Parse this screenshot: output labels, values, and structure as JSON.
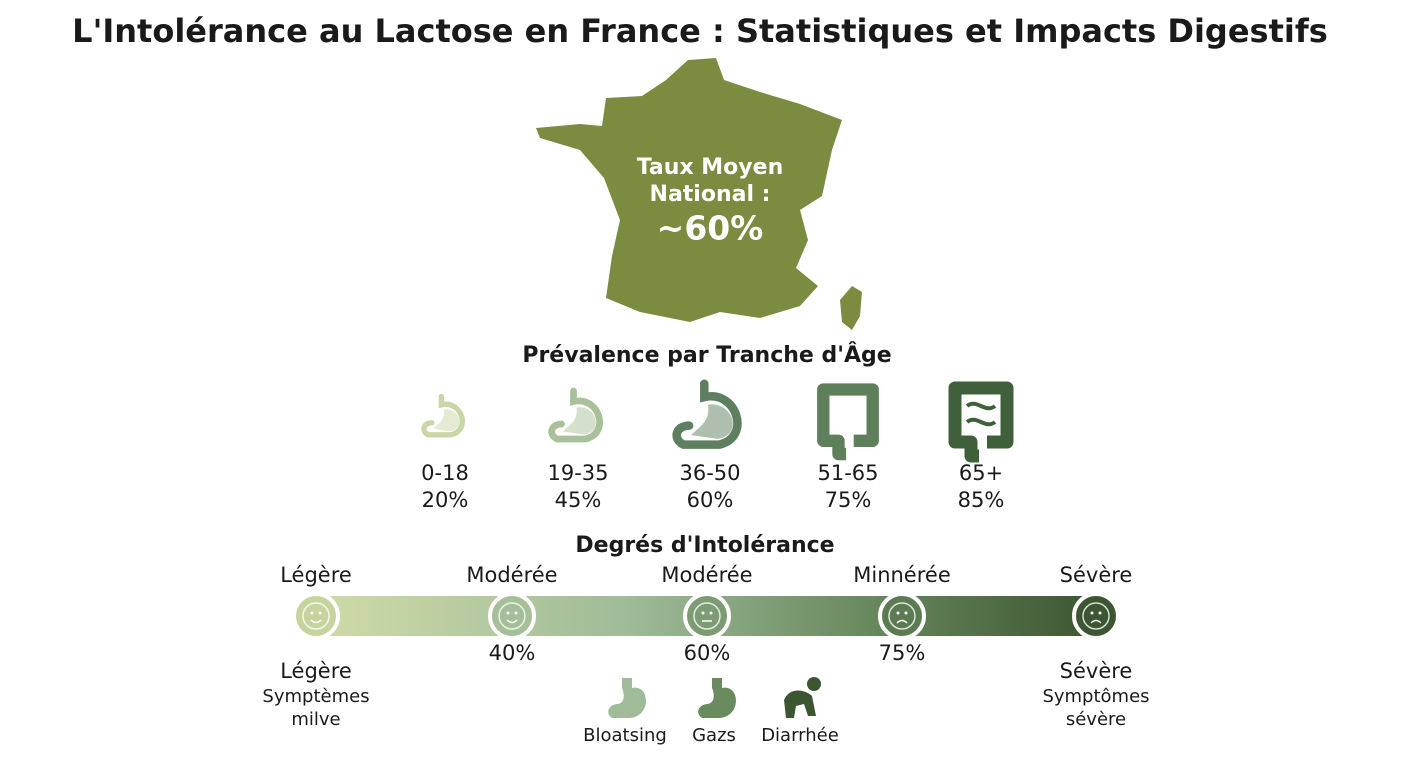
{
  "header": {
    "title": "L'Intolérance au Lactose en France : Statistiques et Impacts Digestifs"
  },
  "map": {
    "label_lines": [
      "Taux Moyen",
      "National :",
      "~60%"
    ]
  },
  "age_section": {
    "title": "Prévalence par Tranche d'Âge",
    "groups": [
      {
        "range": "0-18",
        "value": "20%"
      },
      {
        "range": "19-35",
        "value": "45%"
      },
      {
        "range": "36-50",
        "value": "60%"
      },
      {
        "range": "51-65",
        "value": "75%"
      },
      {
        "range": "65+",
        "value": "85%"
      }
    ]
  },
  "degrees": {
    "title": "Degrés d'Intolérance",
    "stages": [
      "Légère",
      "Modérée",
      "Modérée",
      "Minnérée",
      "Sévère"
    ],
    "percentages": [
      "40%",
      "60%",
      "75%"
    ],
    "left_end": {
      "label": "Légère",
      "description": [
        "Symptèmes",
        "milve"
      ]
    },
    "right_end": {
      "label": "Sévère",
      "description": [
        "Symptômes",
        "sévère"
      ]
    },
    "symptoms": [
      "Bloatsing",
      "Gazs",
      "Diarrhée"
    ]
  }
}
